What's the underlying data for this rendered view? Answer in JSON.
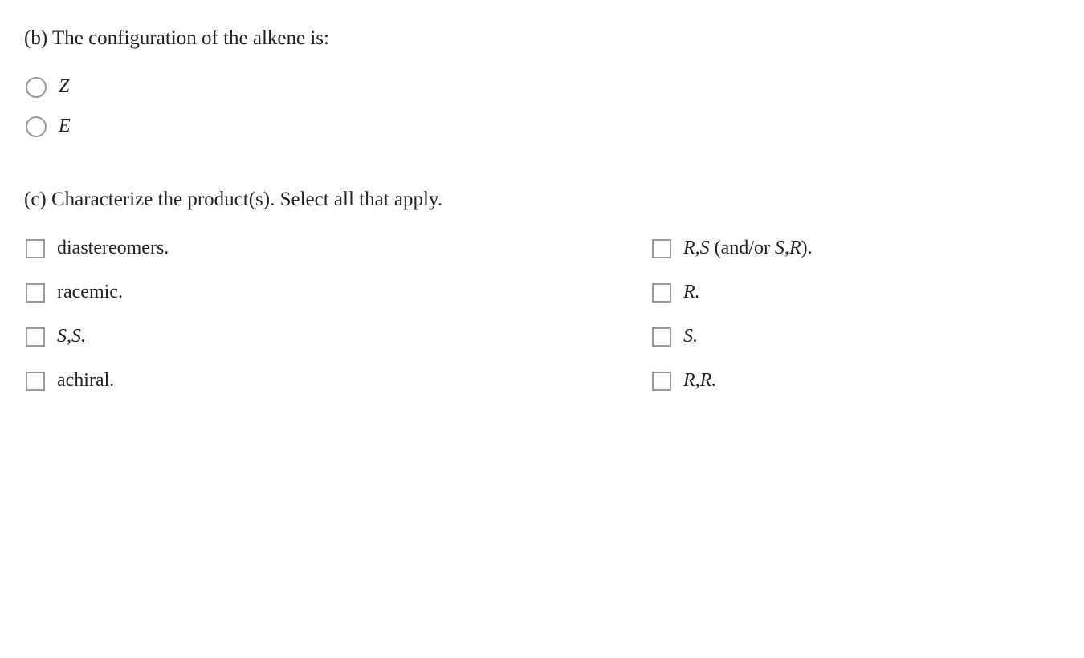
{
  "question_b": {
    "prompt": "(b) The configuration of the alkene is:",
    "options": [
      {
        "label": "Z"
      },
      {
        "label": "E"
      }
    ]
  },
  "question_c": {
    "prompt": "(c) Characterize the product(s). Select all that apply.",
    "options_col1": [
      {
        "html": "diastereomers."
      },
      {
        "html": "racemic."
      },
      {
        "html": "<span class=\"italic\">S,S.</span>"
      },
      {
        "html": "achiral."
      }
    ],
    "options_col2": [
      {
        "html": "<span class=\"italic\">R,S</span> (and/or <span class=\"italic\">S,R</span>)."
      },
      {
        "html": "<span class=\"italic\">R.</span>"
      },
      {
        "html": "<span class=\"italic\">S.</span>"
      },
      {
        "html": "<span class=\"italic\">R,R.</span>"
      }
    ]
  },
  "styling": {
    "background_color": "#ffffff",
    "text_color": "#222222",
    "border_color": "#999999",
    "prompt_fontsize": 25,
    "option_fontsize": 24,
    "radio_size": 26,
    "checkbox_size": 24,
    "font_family": "Georgia, 'Times New Roman', serif"
  }
}
